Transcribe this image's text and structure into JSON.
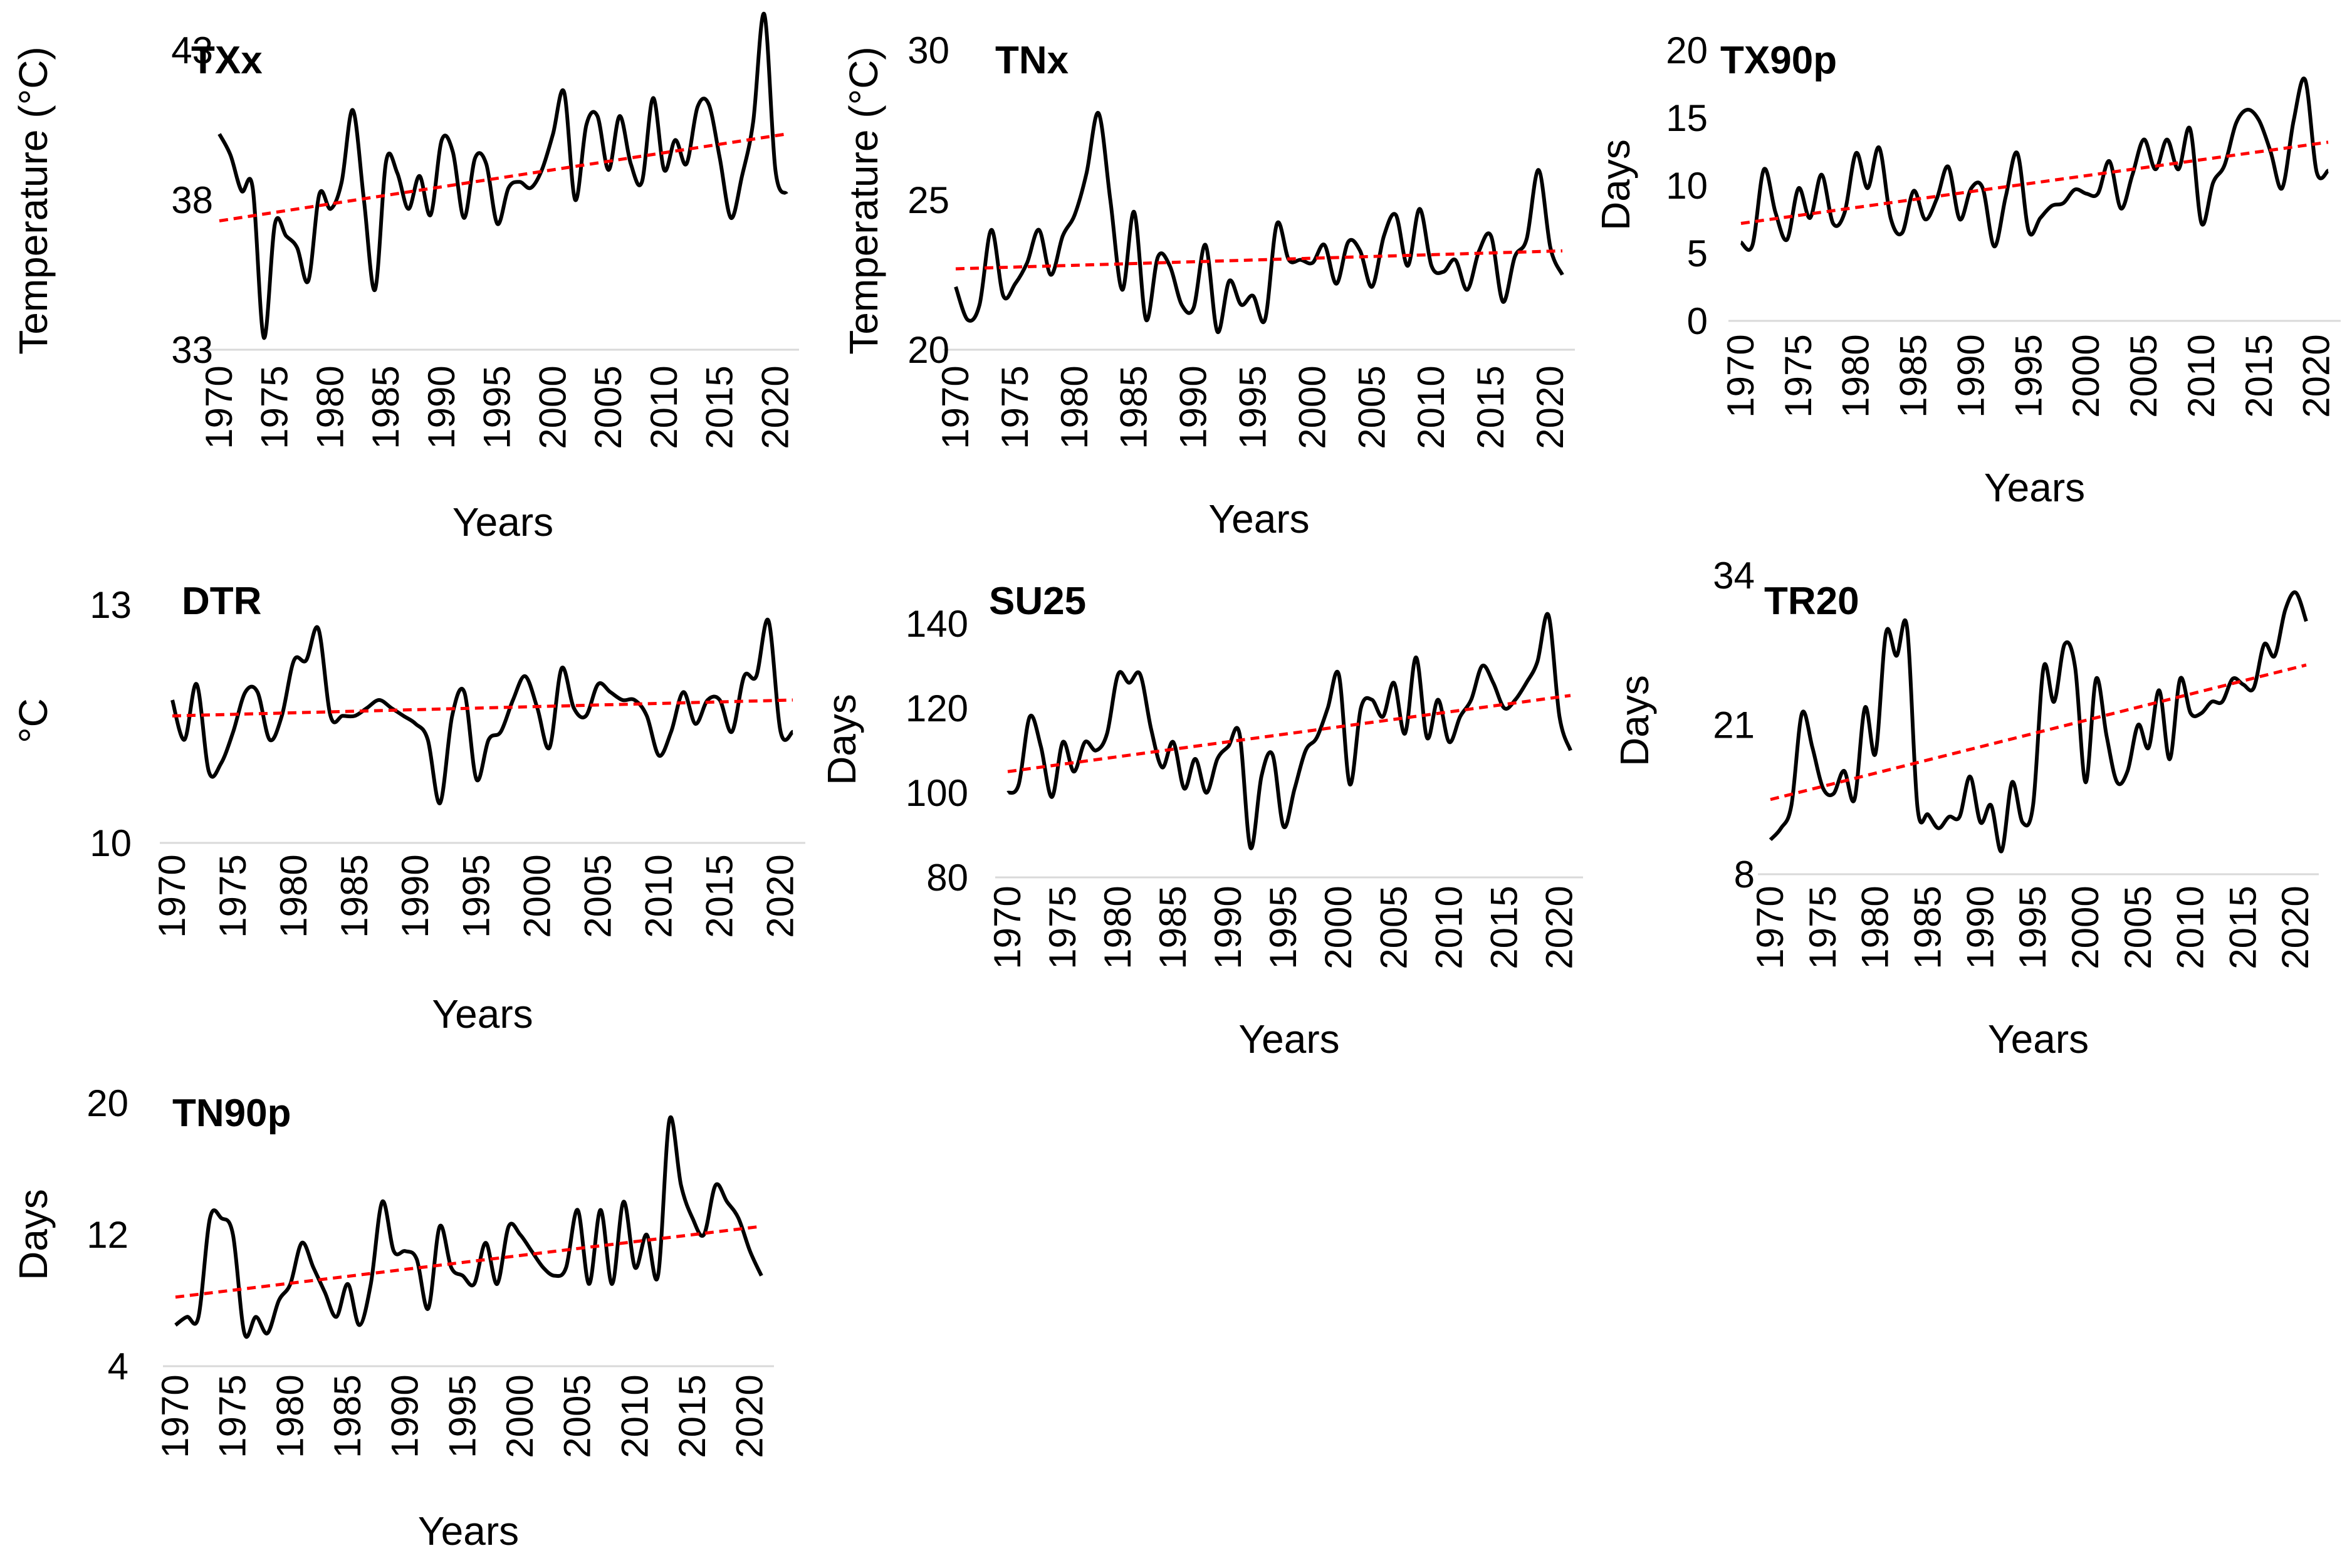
{
  "colors": {
    "series": "#000000",
    "trend": "#ff0000",
    "axis": "#d9d9d9"
  },
  "chart_data": [
    {
      "type": "line",
      "title": "TXx",
      "xlabel": "Years",
      "ylabel": "Temperature  (°C)",
      "ylim": [
        33,
        43
      ],
      "yticks": [
        "33",
        "38",
        "43"
      ],
      "xticks": [
        "1970",
        "1975",
        "1980",
        "1985",
        "1990",
        "1995",
        "2000",
        "2005",
        "2010",
        "2015",
        "2020"
      ],
      "x": [
        1970,
        1971,
        1972,
        1973,
        1974,
        1975,
        1976,
        1977,
        1978,
        1979,
        1980,
        1981,
        1982,
        1983,
        1984,
        1985,
        1986,
        1987,
        1988,
        1989,
        1990,
        1991,
        1992,
        1993,
        1994,
        1995,
        1996,
        1997,
        1998,
        1999,
        2000,
        2001,
        2002,
        2003,
        2004,
        2005,
        2006,
        2007,
        2008,
        2009,
        2010,
        2011,
        2012,
        2013,
        2014,
        2015,
        2016,
        2017,
        2018,
        2019,
        2020,
        2021
      ],
      "values": [
        40.2,
        39.5,
        38.3,
        38.4,
        33.4,
        37.2,
        36.8,
        36.4,
        35.3,
        38.2,
        37.7,
        38.6,
        41.0,
        38.0,
        35.0,
        39.3,
        38.9,
        37.7,
        38.8,
        37.5,
        40.0,
        39.6,
        37.4,
        39.4,
        39.2,
        37.2,
        38.4,
        38.6,
        38.4,
        39.0,
        40.2,
        41.6,
        38.0,
        40.5,
        40.8,
        39.0,
        40.8,
        39.2,
        38.6,
        41.4,
        39.0,
        40.0,
        39.2,
        41.1,
        41.2,
        39.4,
        37.4,
        38.8,
        40.6,
        44.2,
        39.0,
        38.2
      ],
      "trend": [
        37.3,
        40.2
      ]
    },
    {
      "type": "line",
      "title": "TNx",
      "xlabel": "Years",
      "ylabel": "Temperature  (°C)",
      "ylim": [
        20,
        30
      ],
      "yticks": [
        "20",
        "25",
        "30"
      ],
      "xticks": [
        "1970",
        "1975",
        "1980",
        "1985",
        "1990",
        "1995",
        "2000",
        "2005",
        "2010",
        "2015",
        "2020"
      ],
      "x": [
        1970,
        1971,
        1972,
        1973,
        1974,
        1975,
        1976,
        1977,
        1978,
        1979,
        1980,
        1981,
        1982,
        1983,
        1984,
        1985,
        1986,
        1987,
        1988,
        1989,
        1990,
        1991,
        1992,
        1993,
        1994,
        1995,
        1996,
        1997,
        1998,
        1999,
        2000,
        2001,
        2002,
        2003,
        2004,
        2005,
        2006,
        2007,
        2008,
        2009,
        2010,
        2011,
        2012,
        2013,
        2014,
        2015,
        2016,
        2017,
        2018,
        2019,
        2020,
        2021
      ],
      "values": [
        22.1,
        21.0,
        21.5,
        24.0,
        21.8,
        22.2,
        22.9,
        24.0,
        22.5,
        23.8,
        24.5,
        25.9,
        27.9,
        25.0,
        22.0,
        24.6,
        21.0,
        23.1,
        22.8,
        21.5,
        21.4,
        23.5,
        20.6,
        22.3,
        21.5,
        21.8,
        21.0,
        24.2,
        23.0,
        23.0,
        22.9,
        23.5,
        22.2,
        23.6,
        23.3,
        22.1,
        23.8,
        24.5,
        22.8,
        24.7,
        22.8,
        22.6,
        23.0,
        22.0,
        23.3,
        23.8,
        21.6,
        23.1,
        23.7,
        26.0,
        23.4,
        22.5
      ],
      "trend": [
        22.7,
        23.3
      ]
    },
    {
      "type": "line",
      "title": "TX90p",
      "xlabel": "Years",
      "ylabel": "Days",
      "ylim": [
        0,
        20
      ],
      "yticks": [
        "0",
        "5",
        "10",
        "15",
        "20"
      ],
      "xticks": [
        "1970",
        "1975",
        "1980",
        "1985",
        "1990",
        "1995",
        "2000",
        "2005",
        "2010",
        "2015",
        "2020"
      ],
      "x": [
        1970,
        1971,
        1972,
        1973,
        1974,
        1975,
        1976,
        1977,
        1978,
        1979,
        1980,
        1981,
        1982,
        1983,
        1984,
        1985,
        1986,
        1987,
        1988,
        1989,
        1990,
        1991,
        1992,
        1993,
        1994,
        1995,
        1996,
        1997,
        1998,
        1999,
        2000,
        2001,
        2002,
        2003,
        2004,
        2005,
        2006,
        2007,
        2008,
        2009,
        2010,
        2011,
        2012,
        2013,
        2014,
        2015,
        2016,
        2017,
        2018,
        2019,
        2020,
        2021
      ],
      "values": [
        5.8,
        5.6,
        11.2,
        8.0,
        6.0,
        9.8,
        7.6,
        10.8,
        7.2,
        8.0,
        12.4,
        9.8,
        12.8,
        7.6,
        6.5,
        9.6,
        7.5,
        9.0,
        11.4,
        7.5,
        9.8,
        9.8,
        5.5,
        9.2,
        12.4,
        6.6,
        7.6,
        8.5,
        8.7,
        9.7,
        9.4,
        9.4,
        11.8,
        8.3,
        10.8,
        13.4,
        11.2,
        13.4,
        11.2,
        14.2,
        7.2,
        10.2,
        11.5,
        14.6,
        15.6,
        14.8,
        12.5,
        9.8,
        14.8,
        17.8,
        11.0,
        11.1
      ],
      "trend": [
        7.2,
        13.2
      ]
    },
    {
      "type": "line",
      "title": "DTR",
      "xlabel": "Years",
      "ylabel": "°C",
      "ylim": [
        10,
        13
      ],
      "yticks": [
        "10",
        "13"
      ],
      "xticks": [
        "1970",
        "1975",
        "1980",
        "1985",
        "1990",
        "1995",
        "2000",
        "2005",
        "2010",
        "2015",
        "2020"
      ],
      "x": [
        1970,
        1971,
        1972,
        1973,
        1974,
        1975,
        1976,
        1977,
        1978,
        1979,
        1980,
        1981,
        1982,
        1983,
        1984,
        1985,
        1986,
        1987,
        1988,
        1989,
        1990,
        1991,
        1992,
        1993,
        1994,
        1995,
        1996,
        1997,
        1998,
        1999,
        2000,
        2001,
        2002,
        2003,
        2004,
        2005,
        2006,
        2007,
        2008,
        2009,
        2010,
        2011,
        2012,
        2013,
        2014,
        2015,
        2016,
        2017,
        2018,
        2019,
        2020,
        2021
      ],
      "values": [
        11.8,
        11.3,
        12.0,
        10.9,
        11.0,
        11.4,
        11.9,
        11.9,
        11.3,
        11.6,
        12.3,
        12.3,
        12.7,
        11.6,
        11.6,
        11.6,
        11.7,
        11.8,
        11.7,
        11.6,
        11.5,
        11.3,
        10.5,
        11.6,
        11.9,
        10.8,
        11.3,
        11.4,
        11.8,
        12.1,
        11.7,
        11.2,
        12.2,
        11.7,
        11.6,
        12.0,
        11.9,
        11.8,
        11.8,
        11.6,
        11.1,
        11.4,
        11.9,
        11.5,
        11.8,
        11.8,
        11.4,
        12.1,
        12.1,
        12.8,
        11.4,
        11.4
      ],
      "trend": [
        11.6,
        11.8
      ]
    },
    {
      "type": "line",
      "title": "SU25",
      "xlabel": "Years",
      "ylabel": "Days",
      "ylim": [
        80,
        140
      ],
      "yticks": [
        "80",
        "100",
        "120",
        "140"
      ],
      "xticks": [
        "1970",
        "1975",
        "1980",
        "1985",
        "1990",
        "1995",
        "2000",
        "2005",
        "2010",
        "2015",
        "2020"
      ],
      "x": [
        1970,
        1971,
        1972,
        1973,
        1974,
        1975,
        1976,
        1977,
        1978,
        1979,
        1980,
        1981,
        1982,
        1983,
        1984,
        1985,
        1986,
        1987,
        1988,
        1989,
        1990,
        1991,
        1992,
        1993,
        1994,
        1995,
        1996,
        1997,
        1998,
        1999,
        2000,
        2001,
        2002,
        2003,
        2004,
        2005,
        2006,
        2007,
        2008,
        2009,
        2010,
        2011,
        2012,
        2013,
        2014,
        2015,
        2016,
        2017,
        2018,
        2019,
        2020,
        2021
      ],
      "values": [
        100,
        102,
        118,
        111,
        99,
        112,
        105,
        112,
        110,
        114,
        128,
        126,
        128,
        115,
        106,
        112,
        101,
        108,
        100,
        108,
        111,
        114,
        87,
        104,
        109,
        92,
        101,
        110,
        113,
        120,
        128,
        102,
        120,
        122,
        118,
        126,
        114,
        132,
        113,
        122,
        112,
        118,
        122,
        130,
        126,
        120,
        122,
        126,
        131,
        142,
        118,
        110
      ],
      "trend": [
        105,
        123
      ]
    },
    {
      "type": "line",
      "title": "TR20",
      "xlabel": "Years",
      "ylabel": "Days",
      "ylim": [
        8,
        34
      ],
      "yticks": [
        "8",
        "21",
        "34"
      ],
      "xticks": [
        "1970",
        "1975",
        "1980",
        "1985",
        "1990",
        "1995",
        "2000",
        "2005",
        "2010",
        "2015",
        "2020"
      ],
      "x": [
        1970,
        1971,
        1972,
        1973,
        1974,
        1975,
        1976,
        1977,
        1978,
        1979,
        1980,
        1981,
        1982,
        1983,
        1984,
        1985,
        1986,
        1987,
        1988,
        1989,
        1990,
        1991,
        1992,
        1993,
        1994,
        1995,
        1996,
        1997,
        1998,
        1999,
        2000,
        2001,
        2002,
        2003,
        2004,
        2005,
        2006,
        2007,
        2008,
        2009,
        2010,
        2011,
        2012,
        2013,
        2014,
        2015,
        2016,
        2017,
        2018,
        2019,
        2020,
        2021
      ],
      "values": [
        11,
        12,
        14,
        22,
        19,
        15.5,
        15,
        17,
        14.5,
        22.5,
        18.5,
        29,
        27,
        29.5,
        13.8,
        13.2,
        12,
        13,
        13,
        16.5,
        12.5,
        14,
        10,
        16,
        12.5,
        14,
        26,
        23,
        28,
        26,
        16,
        25,
        20,
        16,
        17,
        21,
        19,
        24,
        18,
        25,
        22,
        22,
        23,
        23,
        25,
        24.5,
        24.2,
        28,
        27,
        31,
        32.5,
        30
      ],
      "trend": [
        14.5,
        26.2
      ]
    },
    {
      "type": "line",
      "title": "TN90p",
      "xlabel": "Years",
      "ylabel": "Days",
      "ylim": [
        4,
        20
      ],
      "yticks": [
        "4",
        "12",
        "20"
      ],
      "xticks": [
        "1970",
        "1975",
        "1980",
        "1985",
        "1990",
        "1995",
        "2000",
        "2005",
        "2010",
        "2015",
        "2020"
      ],
      "x": [
        1970,
        1971,
        1972,
        1973,
        1974,
        1975,
        1976,
        1977,
        1978,
        1979,
        1980,
        1981,
        1982,
        1983,
        1984,
        1985,
        1986,
        1987,
        1988,
        1989,
        1990,
        1991,
        1992,
        1993,
        1994,
        1995,
        1996,
        1997,
        1998,
        1999,
        2000,
        2001,
        2002,
        2003,
        2004,
        2005,
        2006,
        2007,
        2008,
        2009,
        2010,
        2011,
        2012,
        2013,
        2014,
        2015,
        2016,
        2017,
        2018,
        2019,
        2020,
        2021
      ],
      "values": [
        6.5,
        7,
        7,
        13,
        13,
        12,
        6,
        7,
        6,
        8,
        9,
        11.5,
        10,
        8.5,
        7,
        9,
        6.5,
        9,
        14,
        11,
        11,
        10.5,
        7.5,
        12.5,
        10,
        9.5,
        9,
        11.5,
        9,
        12.5,
        12,
        11,
        10,
        9.5,
        10,
        13.5,
        9,
        13.5,
        9,
        14,
        10,
        12,
        9.5,
        19,
        15,
        13,
        12,
        15,
        14,
        13,
        11,
        9.5
      ],
      "trend": [
        8.2,
        12.5
      ]
    }
  ]
}
